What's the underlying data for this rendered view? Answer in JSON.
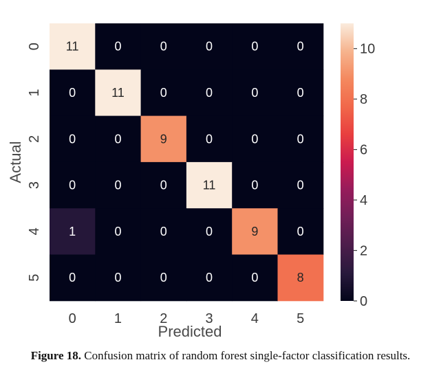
{
  "chart_data": {
    "type": "heatmap",
    "title": "",
    "xlabel": "Predicted",
    "ylabel": "Actual",
    "x_categories": [
      "0",
      "1",
      "2",
      "3",
      "4",
      "5"
    ],
    "y_categories": [
      "0",
      "1",
      "2",
      "3",
      "4",
      "5"
    ],
    "values": [
      [
        11,
        0,
        0,
        0,
        0,
        0
      ],
      [
        0,
        11,
        0,
        0,
        0,
        0
      ],
      [
        0,
        0,
        9,
        0,
        0,
        0
      ],
      [
        0,
        0,
        0,
        11,
        0,
        0
      ],
      [
        1,
        0,
        0,
        0,
        9,
        0
      ],
      [
        0,
        0,
        0,
        0,
        0,
        8
      ]
    ],
    "colorbar": {
      "range": [
        0,
        11
      ],
      "ticks": [
        0,
        2,
        4,
        6,
        8,
        10
      ],
      "colormap": "rocket"
    },
    "colors": {
      "low": "#03051a",
      "high": "#faebdd"
    }
  },
  "caption": {
    "label": "Figure 18.",
    "text": " Confusion matrix of random forest single-factor classification results."
  }
}
